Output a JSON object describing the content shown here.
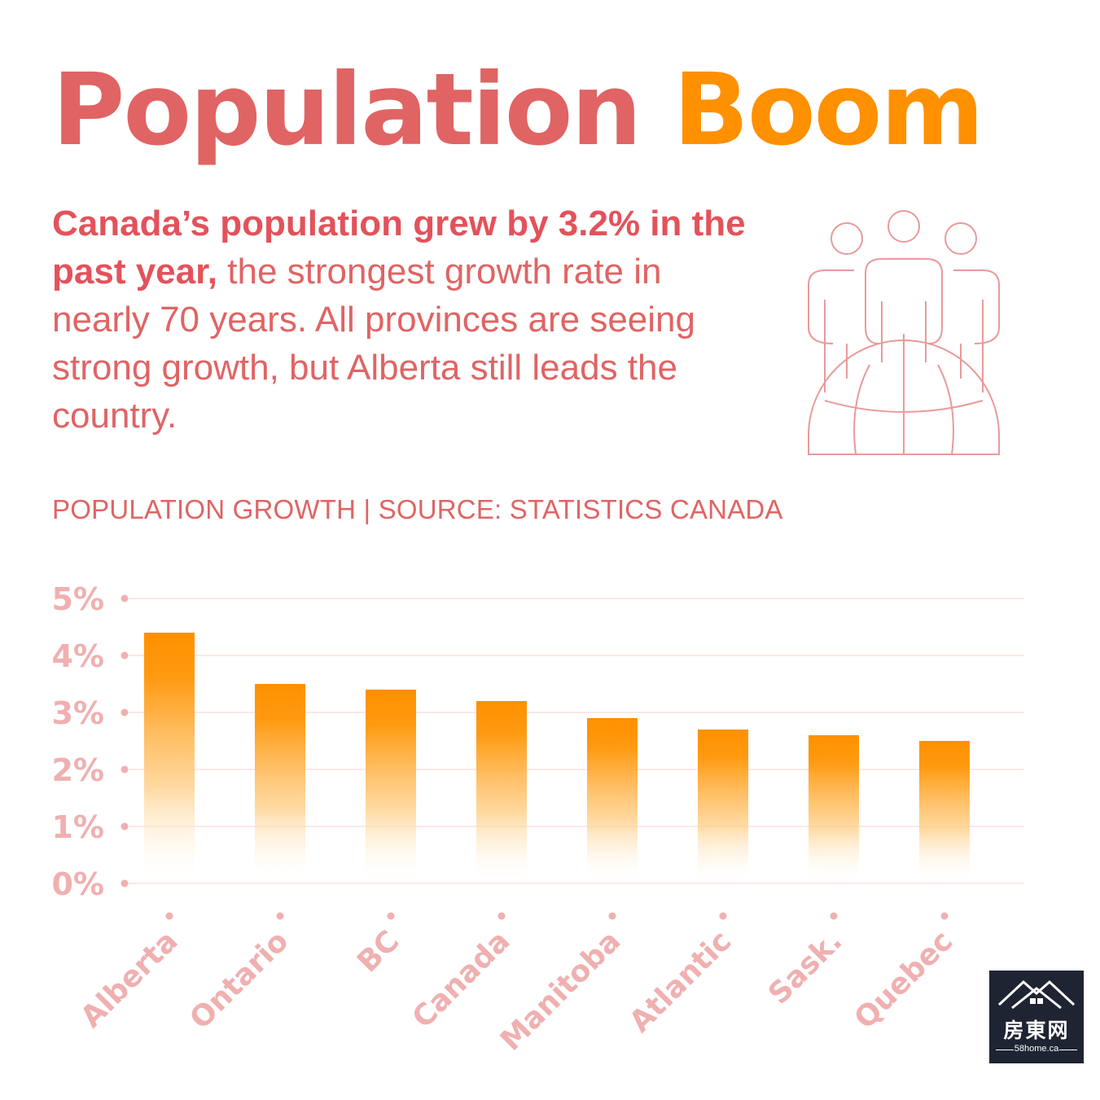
{
  "title": {
    "part1": "Population",
    "part2": "Boom"
  },
  "intro": {
    "bold": "Canada’s population grew by 3.2% in the past year,",
    "rest": " the strongest growth rate in nearly 70 years. All provinces are seeing strong growth, but Alberta still leads the country."
  },
  "source_line": "POPULATION GROWTH | SOURCE: STATISTICS CANADA",
  "icon": "people-globe-icon",
  "colors": {
    "title_red": "#e06464",
    "title_orange": "#ff9000",
    "bar": "#ff9000",
    "axis_label": "#f0b0b0",
    "grid": "#fbe0e0"
  },
  "chart_data": {
    "type": "bar",
    "categories": [
      "Alberta",
      "Ontario",
      "BC",
      "Canada",
      "Manitoba",
      "Atlantic",
      "Sask.",
      "Quebec"
    ],
    "values": [
      4.4,
      3.5,
      3.4,
      3.2,
      2.9,
      2.7,
      2.6,
      2.5
    ],
    "ytick_labels": [
      "0%",
      "1%",
      "2%",
      "3%",
      "4%",
      "5%"
    ],
    "ylim": [
      0,
      5
    ],
    "grid": true
  },
  "logo": {
    "cn": "房東网",
    "url": "58home.ca"
  }
}
